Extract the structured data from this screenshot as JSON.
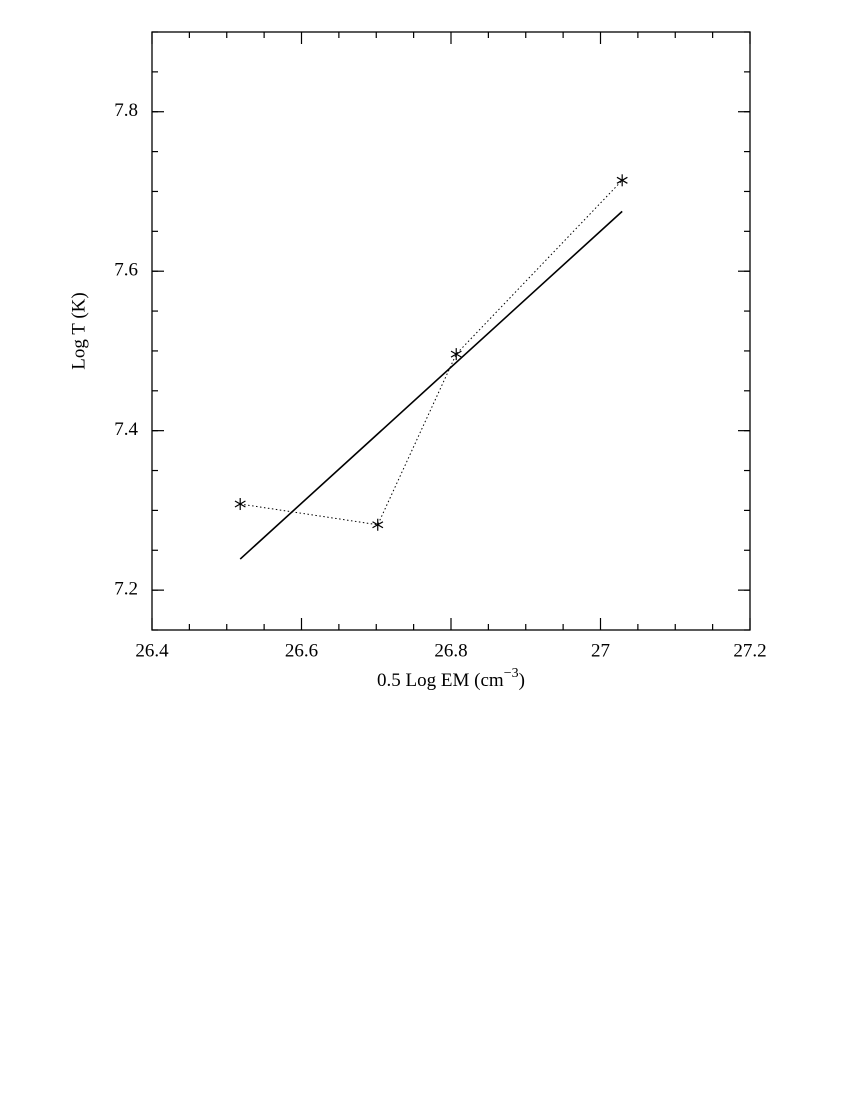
{
  "chart_data": {
    "type": "line",
    "xlabel": {
      "text": "0.5 Log EM (cm",
      "sup": "−3",
      "tail": ")"
    },
    "ylabel": "Log T (K)",
    "xlim": [
      26.4,
      27.2
    ],
    "xticks": [
      26.4,
      26.6,
      26.8,
      27,
      27.2
    ],
    "ylim": [
      7.15,
      7.9
    ],
    "yticks": [
      7.2,
      7.4,
      7.6,
      7.8
    ],
    "series": [
      {
        "color": "#000000",
        "style": "dotted",
        "marker": "asterisk",
        "x": [
          26.518,
          26.702,
          26.807,
          27.029
        ],
        "values": [
          7.308,
          7.282,
          7.496,
          7.714
        ]
      },
      {
        "color": "#000000",
        "style": "solid",
        "x": [
          26.518,
          27.029
        ],
        "values": [
          7.239,
          7.675
        ]
      }
    ]
  }
}
